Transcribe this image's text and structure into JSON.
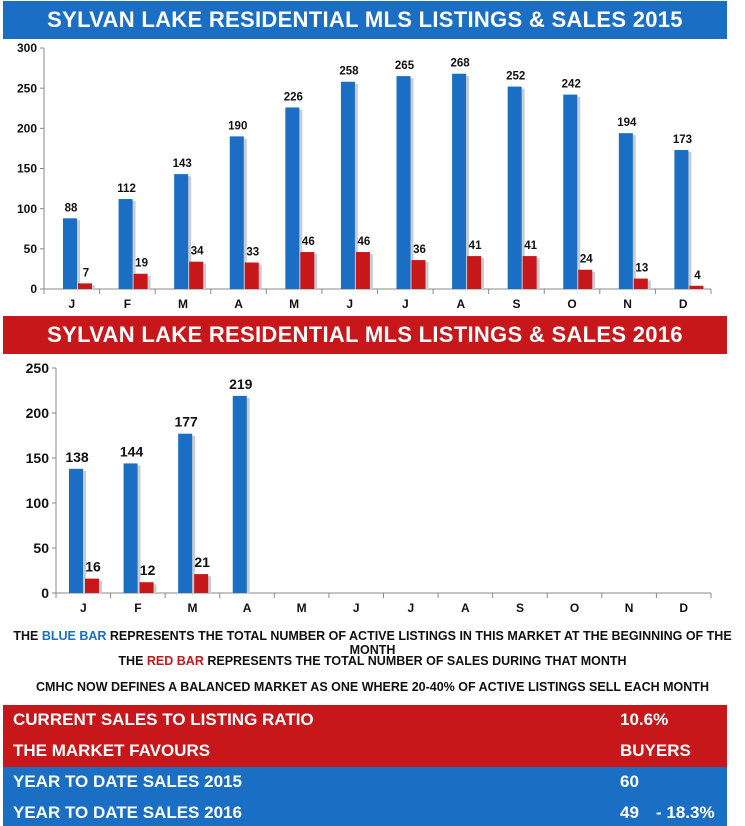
{
  "colors": {
    "blue": "#1a6fc4",
    "red": "#c8171b"
  },
  "chart_data": [
    {
      "type": "bar",
      "title": "SYLVAN LAKE RESIDENTIAL MLS LISTINGS & SALES 2015",
      "categories": [
        "J",
        "F",
        "M",
        "A",
        "M",
        "J",
        "J",
        "A",
        "S",
        "O",
        "N",
        "D"
      ],
      "series": [
        {
          "values": [
            88,
            112,
            143,
            190,
            226,
            258,
            265,
            268,
            252,
            242,
            194,
            173
          ],
          "color": "#1a6fc4"
        },
        {
          "values": [
            7,
            19,
            34,
            33,
            46,
            46,
            36,
            41,
            41,
            24,
            13,
            4
          ],
          "color": "#c8171b"
        }
      ],
      "ylim": [
        0,
        300
      ],
      "yticks": [
        0,
        50,
        100,
        150,
        200,
        250,
        300
      ]
    },
    {
      "type": "bar",
      "title": "SYLVAN LAKE RESIDENTIAL MLS LISTINGS & SALES 2016",
      "categories": [
        "J",
        "F",
        "M",
        "A",
        "M",
        "J",
        "J",
        "A",
        "S",
        "O",
        "N",
        "D"
      ],
      "series": [
        {
          "values": [
            138,
            144,
            177,
            219,
            null,
            null,
            null,
            null,
            null,
            null,
            null,
            null
          ],
          "color": "#1a6fc4"
        },
        {
          "values": [
            16,
            12,
            21,
            null,
            null,
            null,
            null,
            null,
            null,
            null,
            null,
            null
          ],
          "color": "#c8171b"
        }
      ],
      "ylim": [
        0,
        250
      ],
      "yticks": [
        0,
        50,
        100,
        150,
        200,
        250
      ]
    }
  ],
  "notes": {
    "line1": {
      "the": "THE ",
      "blue_bar": "BLUE BAR",
      "rest": " REPRESENTS THE TOTAL NUMBER OF ACTIVE LISTINGS IN THIS MARKET AT THE BEGINNING OF THE MONTH"
    },
    "line2": {
      "the": "THE ",
      "red_bar": "RED BAR",
      "rest": " REPRESENTS THE TOTAL NUMBER OF SALES DURING THAT MONTH"
    },
    "line3": "CMHC NOW DEFINES A BALANCED MARKET AS ONE WHERE 20-40% OF ACTIVE LISTINGS SELL EACH MONTH"
  },
  "summary": {
    "ratio_label": "CURRENT SALES TO LISTING RATIO",
    "ratio_value": "10.6%",
    "favours_label": "THE MARKET FAVOURS",
    "favours_value": "BUYERS",
    "ytd2015_label": "YEAR TO DATE SALES 2015",
    "ytd2015_value": "60",
    "ytd2016_label": "YEAR TO DATE SALES 2016",
    "ytd2016_value": "49",
    "ytd2016_change": "- 18.3%"
  }
}
